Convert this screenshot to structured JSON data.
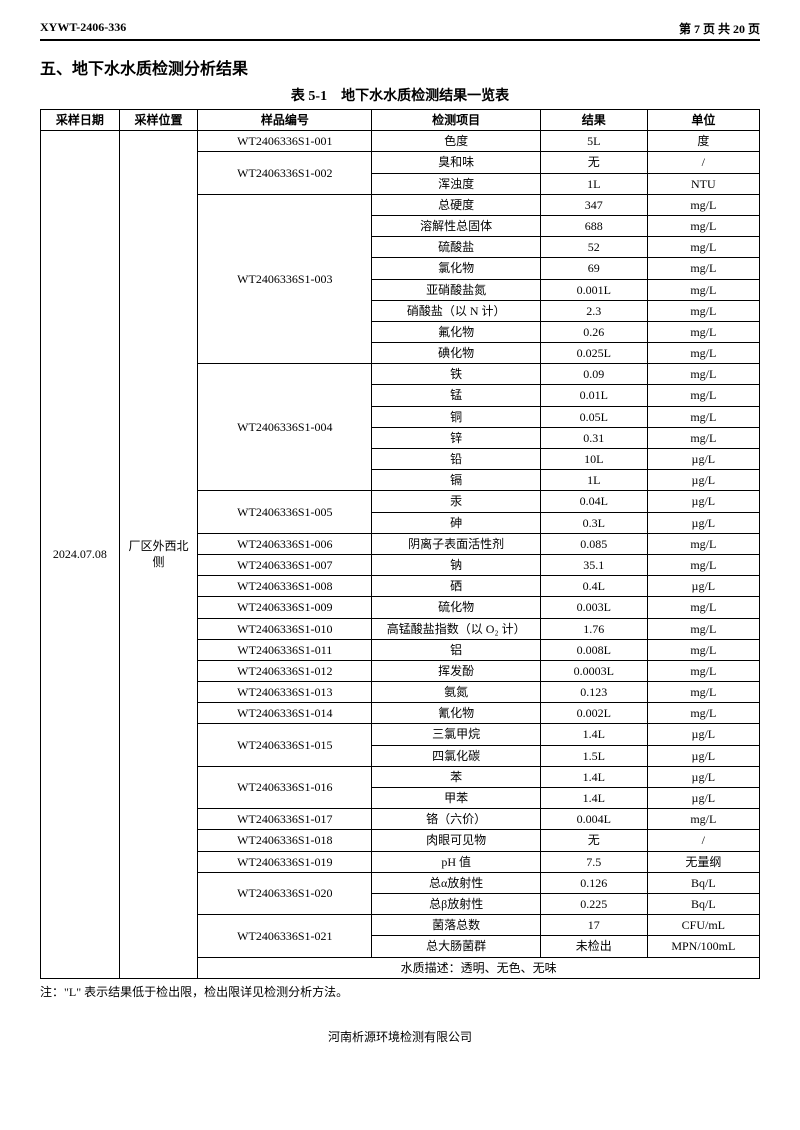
{
  "header": {
    "doc_no": "XYWT-2406-336",
    "page_prefix": "第 ",
    "page_num": "7",
    "page_mid": " 页 共 ",
    "page_total": "20",
    "page_suffix": " 页"
  },
  "section_title": "五、地下水水质检测分析结果",
  "table_caption": "表 5-1　地下水水质检测结果一览表",
  "columns": {
    "date": "采样日期",
    "location": "采样位置",
    "sample_no": "样品编号",
    "item": "检测项目",
    "result": "结果",
    "unit": "单位"
  },
  "sampling_date": "2024.07.08",
  "sampling_location": "厂区外西北侧",
  "rows": [
    {
      "sample": "WT2406336S1-001",
      "item": "色度",
      "result": "5L",
      "unit": "度"
    },
    {
      "sample": "WT2406336S1-002",
      "item": "臭和味",
      "result": "无",
      "unit": "/"
    },
    {
      "sample": "",
      "item": "浑浊度",
      "result": "1L",
      "unit": "NTU"
    },
    {
      "sample": "WT2406336S1-003",
      "item": "总硬度",
      "result": "347",
      "unit": "mg/L"
    },
    {
      "sample": "",
      "item": "溶解性总固体",
      "result": "688",
      "unit": "mg/L"
    },
    {
      "sample": "",
      "item": "硫酸盐",
      "result": "52",
      "unit": "mg/L"
    },
    {
      "sample": "",
      "item": "氯化物",
      "result": "69",
      "unit": "mg/L"
    },
    {
      "sample": "",
      "item": "亚硝酸盐氮",
      "result": "0.001L",
      "unit": "mg/L"
    },
    {
      "sample": "",
      "item": "硝酸盐（以 N 计）",
      "result": "2.3",
      "unit": "mg/L"
    },
    {
      "sample": "",
      "item": "氟化物",
      "result": "0.26",
      "unit": "mg/L"
    },
    {
      "sample": "",
      "item": "碘化物",
      "result": "0.025L",
      "unit": "mg/L"
    },
    {
      "sample": "WT2406336S1-004",
      "item": "铁",
      "result": "0.09",
      "unit": "mg/L"
    },
    {
      "sample": "",
      "item": "锰",
      "result": "0.01L",
      "unit": "mg/L"
    },
    {
      "sample": "",
      "item": "铜",
      "result": "0.05L",
      "unit": "mg/L"
    },
    {
      "sample": "",
      "item": "锌",
      "result": "0.31",
      "unit": "mg/L"
    },
    {
      "sample": "",
      "item": "铅",
      "result": "10L",
      "unit": "µg/L"
    },
    {
      "sample": "",
      "item": "镉",
      "result": "1L",
      "unit": "µg/L"
    },
    {
      "sample": "WT2406336S1-005",
      "item": "汞",
      "result": "0.04L",
      "unit": "µg/L"
    },
    {
      "sample": "",
      "item": "砷",
      "result": "0.3L",
      "unit": "µg/L"
    },
    {
      "sample": "WT2406336S1-006",
      "item": "阴离子表面活性剂",
      "result": "0.085",
      "unit": "mg/L"
    },
    {
      "sample": "WT2406336S1-007",
      "item": "钠",
      "result": "35.1",
      "unit": "mg/L"
    },
    {
      "sample": "WT2406336S1-008",
      "item": "硒",
      "result": "0.4L",
      "unit": "µg/L"
    },
    {
      "sample": "WT2406336S1-009",
      "item": "硫化物",
      "result": "0.003L",
      "unit": "mg/L"
    },
    {
      "sample": "WT2406336S1-010",
      "item": "高锰酸盐指数（以 O₂ 计）",
      "result": "1.76",
      "unit": "mg/L"
    },
    {
      "sample": "WT2406336S1-011",
      "item": "铝",
      "result": "0.008L",
      "unit": "mg/L"
    },
    {
      "sample": "WT2406336S1-012",
      "item": "挥发酚",
      "result": "0.0003L",
      "unit": "mg/L"
    },
    {
      "sample": "WT2406336S1-013",
      "item": "氨氮",
      "result": "0.123",
      "unit": "mg/L"
    },
    {
      "sample": "WT2406336S1-014",
      "item": "氰化物",
      "result": "0.002L",
      "unit": "mg/L"
    },
    {
      "sample": "WT2406336S1-015",
      "item": "三氯甲烷",
      "result": "1.4L",
      "unit": "µg/L"
    },
    {
      "sample": "",
      "item": "四氯化碳",
      "result": "1.5L",
      "unit": "µg/L"
    },
    {
      "sample": "WT2406336S1-016",
      "item": "苯",
      "result": "1.4L",
      "unit": "µg/L"
    },
    {
      "sample": "",
      "item": "甲苯",
      "result": "1.4L",
      "unit": "µg/L"
    },
    {
      "sample": "WT2406336S1-017",
      "item": "铬（六价）",
      "result": "0.004L",
      "unit": "mg/L"
    },
    {
      "sample": "WT2406336S1-018",
      "item": "肉眼可见物",
      "result": "无",
      "unit": "/"
    },
    {
      "sample": "WT2406336S1-019",
      "item": "pH 值",
      "result": "7.5",
      "unit": "无量纲"
    },
    {
      "sample": "WT2406336S1-020",
      "item": "总α放射性",
      "result": "0.126",
      "unit": "Bq/L"
    },
    {
      "sample": "",
      "item": "总β放射性",
      "result": "0.225",
      "unit": "Bq/L"
    },
    {
      "sample": "WT2406336S1-021",
      "item": "菌落总数",
      "result": "17",
      "unit": "CFU/mL"
    },
    {
      "sample": "",
      "item": "总大肠菌群",
      "result": "未检出",
      "unit": "MPN/100mL"
    }
  ],
  "sample_spans": {
    "0": 1,
    "1": 2,
    "3": 8,
    "11": 6,
    "17": 2,
    "19": 1,
    "20": 1,
    "21": 1,
    "22": 1,
    "23": 1,
    "24": 1,
    "25": 1,
    "26": 1,
    "27": 1,
    "28": 2,
    "30": 2,
    "32": 1,
    "33": 1,
    "34": 1,
    "35": 2,
    "37": 2
  },
  "water_desc_label": "水质描述：",
  "water_desc": "透明、无色、无味",
  "note": "注：\"L\" 表示结果低于检出限，检出限详见检测分析方法。",
  "footer": "河南析源环境检测有限公司"
}
